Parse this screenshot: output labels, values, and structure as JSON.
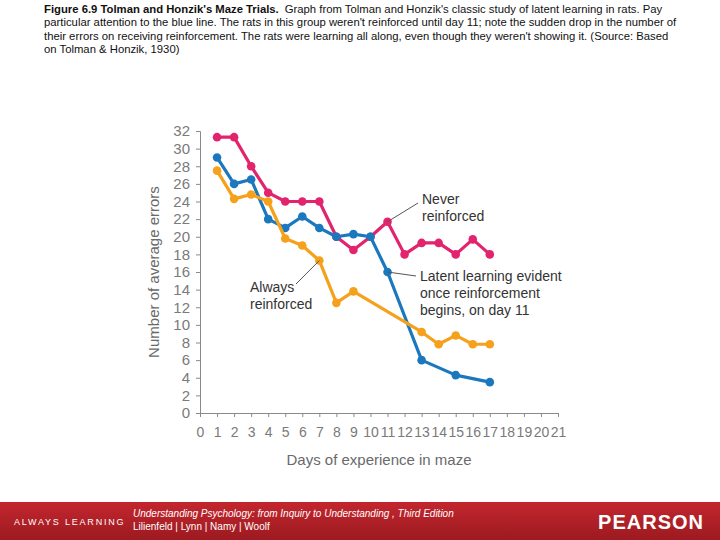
{
  "chart_data": {
    "type": "line",
    "title": "Figure 6.9 Tolman and Honzik's Maze Trials.",
    "subtitle": "Graph from Tolman and Honzik's classic study of latent learning in rats. Pay particular attention to the blue line. The rats in this group weren't reinforced until day 11; note the sudden drop in the number of their errors on receiving reinforcement. The rats were learning all along, even though they weren't showing it. (Source: Based on Tolman & Honzik, 1930)",
    "xlabel": "Days of experience in maze",
    "ylabel": "Number of average errors",
    "xlim": [
      0,
      21
    ],
    "ylim": [
      0,
      32
    ],
    "xticks": [
      0,
      1,
      2,
      3,
      4,
      5,
      6,
      7,
      8,
      9,
      10,
      11,
      12,
      13,
      14,
      15,
      16,
      17,
      18,
      19,
      20,
      21
    ],
    "yticks": [
      0,
      2,
      4,
      6,
      8,
      10,
      12,
      14,
      16,
      18,
      20,
      22,
      24,
      26,
      28,
      30,
      32
    ],
    "grid": false,
    "series": [
      {
        "name": "Never reinforced",
        "color": "#e2236d",
        "marker": "circle",
        "line_style": "solid",
        "x": [
          1,
          2,
          3,
          4,
          5,
          6,
          7,
          8,
          9,
          10,
          11,
          12,
          13,
          14,
          15,
          16,
          17
        ],
        "values": [
          31.3,
          31.3,
          28,
          25,
          24,
          24,
          24,
          20,
          18.5,
          20,
          21.7,
          18,
          19.3,
          19.3,
          18,
          19.7,
          18
        ]
      },
      {
        "name": "Latent learning evident once reinforcement begins, on day 11",
        "color": "#1c78be",
        "marker": "circle",
        "line_style": "solid",
        "x": [
          1,
          2,
          3,
          4,
          5,
          6,
          7,
          8,
          9,
          10,
          11,
          13,
          15,
          17
        ],
        "values": [
          29,
          26,
          26.5,
          22,
          21,
          22.3,
          21,
          20,
          20.3,
          20,
          16,
          6,
          4.3,
          3.5
        ]
      },
      {
        "name": "Always reinforced",
        "color": "#f5a11c",
        "marker": "circle",
        "line_style": "solid",
        "x": [
          1,
          2,
          3,
          4,
          5,
          6,
          7,
          8,
          9,
          13,
          14,
          15,
          16,
          17
        ],
        "values": [
          27.5,
          24.3,
          24.8,
          24,
          19.8,
          19,
          17.3,
          12.5,
          13.8,
          9.2,
          7.8,
          8.8,
          7.8,
          7.8
        ]
      }
    ]
  },
  "footer": {
    "left": "ALWAYS LEARNING",
    "book": "Understanding Psychology: from Inquiry to Understanding , Third Edition",
    "authors": "Lilienfeld | Lynn | Namy | Woolf",
    "publisher": "PEARSON"
  }
}
